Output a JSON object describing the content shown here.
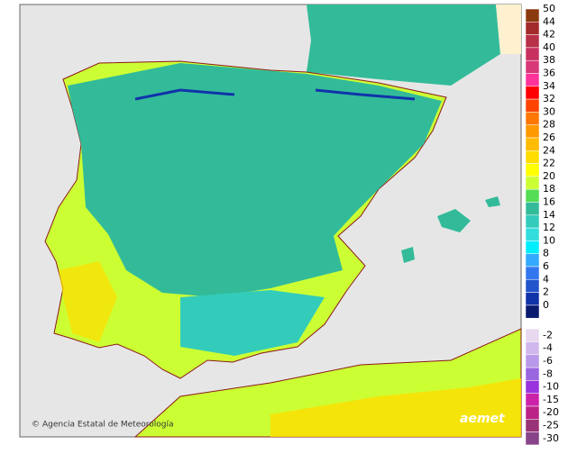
{
  "legend": {
    "items": [
      {
        "value": 50,
        "color": "#8b3a0f"
      },
      {
        "value": 44,
        "color": "#a32a2a"
      },
      {
        "value": 42,
        "color": "#b83048"
      },
      {
        "value": 40,
        "color": "#c83060"
      },
      {
        "value": 38,
        "color": "#d83878"
      },
      {
        "value": 36,
        "color": "#ff3399"
      },
      {
        "value": 34,
        "color": "#ff0000"
      },
      {
        "value": 32,
        "color": "#ff4400"
      },
      {
        "value": 30,
        "color": "#ff7700"
      },
      {
        "value": 28,
        "color": "#ff9900"
      },
      {
        "value": 26,
        "color": "#ffbb00"
      },
      {
        "value": 24,
        "color": "#ffdd00"
      },
      {
        "value": 22,
        "color": "#ffff00"
      },
      {
        "value": 20,
        "color": "#ccff33"
      },
      {
        "value": 18,
        "color": "#55dd55"
      },
      {
        "value": 16,
        "color": "#33bb99"
      },
      {
        "value": 14,
        "color": "#33ccbb"
      },
      {
        "value": 12,
        "color": "#33dddd"
      },
      {
        "value": 10,
        "color": "#00eeff"
      },
      {
        "value": 8,
        "color": "#33aaff"
      },
      {
        "value": 6,
        "color": "#3377ee"
      },
      {
        "value": 4,
        "color": "#2255cc"
      },
      {
        "value": 2,
        "color": "#1133aa"
      },
      {
        "value": 0,
        "color": "#0a1a6e"
      },
      {
        "value": -2,
        "color": "#e8d8f0"
      },
      {
        "value": -4,
        "color": "#d0b8ec"
      },
      {
        "value": -6,
        "color": "#b898e8"
      },
      {
        "value": -8,
        "color": "#9966e0"
      },
      {
        "value": -10,
        "color": "#9933dd"
      },
      {
        "value": -15,
        "color": "#cc22aa"
      },
      {
        "value": -20,
        "color": "#bb2288"
      },
      {
        "value": -25,
        "color": "#993377"
      },
      {
        "value": -30,
        "color": "#884488"
      }
    ]
  },
  "credit": "Agencia Estatal de Meteorología",
  "logo": "aemet"
}
